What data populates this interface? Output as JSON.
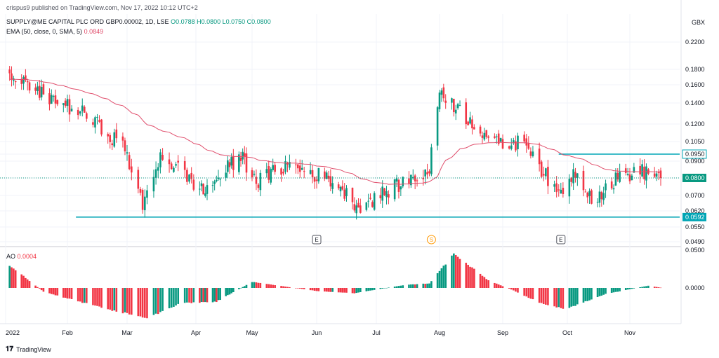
{
  "header": {
    "published": "crispus9 published on TradingView.com, Nov 17, 2022 10:12 UTC+2",
    "symbol": "SUPPLY@ME CAPITAL PLC ORD GBP0.00002, 1D, LSE",
    "ohlc": "O0.0788  H0.0800  L0.0750  C0.0800",
    "ema_label": "EMA (50, close, 0, SMA, 5)",
    "ema_value": "0.0849",
    "ao_label": "AO",
    "ao_value": "0.0004",
    "currency": "GBX"
  },
  "branding": {
    "text": "TradingView",
    "icon": "tradingview-logo-icon"
  },
  "colors": {
    "up": "#089981",
    "down": "#f23645",
    "ema": "#e04e6c",
    "hline": "#00a5b5",
    "text": "#131722"
  },
  "chart_data": [
    {
      "type": "candlestick",
      "title": "SUPPLY@ME CAPITAL PLC ORD GBP0.00002, 1D, LSE",
      "price_scale": "log",
      "y_ticks": [
        "0.2200",
        "0.1800",
        "0.1600",
        "0.1400",
        "0.1200",
        "0.1050",
        "0.0950",
        "0.0900",
        "0.0800",
        "0.0700",
        "0.0620",
        "0.0550",
        "0.0490"
      ],
      "x_ticks": [
        "2022",
        "Feb",
        "Mar",
        "Apr",
        "May",
        "Jun",
        "Jul",
        "Aug",
        "Sep",
        "Oct",
        "Nov"
      ],
      "price_labels": [
        {
          "value": "0.0950",
          "style": "outline"
        },
        {
          "value": "0.0800",
          "style": "filled"
        },
        {
          "value": "0.0592",
          "style": "filled"
        }
      ],
      "horizontal_lines": [
        {
          "price": 0.095,
          "from": "Sep 27, 2022"
        },
        {
          "price": 0.0592,
          "from": "Feb 05, 2022"
        }
      ],
      "event_markers": [
        {
          "label": "E",
          "date": "Jun 01"
        },
        {
          "label": "S",
          "date": "Jul 28"
        },
        {
          "label": "E",
          "date": "Sep 28"
        }
      ],
      "current_price": 0.08,
      "ema_period": 50,
      "price_anchors": [
        {
          "date": "Jan 03",
          "price": 0.17
        },
        {
          "date": "Jan 20",
          "price": 0.15
        },
        {
          "date": "Feb 10",
          "price": 0.128
        },
        {
          "date": "Feb 28",
          "price": 0.1
        },
        {
          "date": "Mar 08",
          "price": 0.064
        },
        {
          "date": "Mar 16",
          "price": 0.095
        },
        {
          "date": "Apr 05",
          "price": 0.072
        },
        {
          "date": "Apr 25",
          "price": 0.094
        },
        {
          "date": "May 04",
          "price": 0.078
        },
        {
          "date": "May 18",
          "price": 0.088
        },
        {
          "date": "Jun 10",
          "price": 0.078
        },
        {
          "date": "Jun 22",
          "price": 0.064
        },
        {
          "date": "Jul 15",
          "price": 0.078
        },
        {
          "date": "Jul 27",
          "price": 0.084
        },
        {
          "date": "Aug 01",
          "price": 0.155
        },
        {
          "date": "Aug 12",
          "price": 0.13
        },
        {
          "date": "Aug 30",
          "price": 0.102
        },
        {
          "date": "Sep 12",
          "price": 0.105
        },
        {
          "date": "Sep 26",
          "price": 0.07
        },
        {
          "date": "Oct 05",
          "price": 0.084
        },
        {
          "date": "Oct 14",
          "price": 0.068
        },
        {
          "date": "Oct 28",
          "price": 0.082
        },
        {
          "date": "Nov 10",
          "price": 0.084
        },
        {
          "date": "Nov 16",
          "price": 0.08
        }
      ]
    },
    {
      "type": "bar",
      "title": "AO",
      "y_ticks": [
        "0.0500",
        "0.0000"
      ],
      "value_anchors": [
        {
          "date": "Jan 03",
          "value": 0.03
        },
        {
          "date": "Jan 20",
          "value": -0.005
        },
        {
          "date": "Feb 20",
          "value": -0.028
        },
        {
          "date": "Mar 10",
          "value": -0.04
        },
        {
          "date": "Mar 25",
          "value": -0.02
        },
        {
          "date": "Apr 12",
          "value": -0.018
        },
        {
          "date": "May 01",
          "value": 0.008
        },
        {
          "date": "Jun 01",
          "value": -0.004
        },
        {
          "date": "Jun 20",
          "value": -0.007
        },
        {
          "date": "Jul 15",
          "value": 0.004
        },
        {
          "date": "Jul 27",
          "value": 0.006
        },
        {
          "date": "Aug 08",
          "value": 0.045
        },
        {
          "date": "Aug 25",
          "value": 0.01
        },
        {
          "date": "Sep 05",
          "value": -0.002
        },
        {
          "date": "Sep 20",
          "value": -0.022
        },
        {
          "date": "Sep 30",
          "value": -0.028
        },
        {
          "date": "Oct 20",
          "value": -0.008
        },
        {
          "date": "Nov 10",
          "value": 0.003
        },
        {
          "date": "Nov 16",
          "value": 0.0004
        }
      ]
    }
  ]
}
